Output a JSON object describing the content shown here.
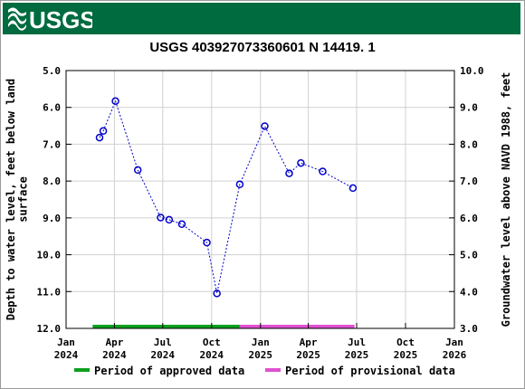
{
  "header": {
    "logo_text": "USGS",
    "banner_color": "#006b3f"
  },
  "chart_data": {
    "type": "line",
    "title": "USGS 403927073360601 N 14419. 1",
    "ylabel_left": "Depth to water level, feet below land surface",
    "ylabel_right": "Groundwater level above NAVD 1988, feet",
    "ylim_left": [
      12.0,
      5.0
    ],
    "ylim_right": [
      3.0,
      10.0
    ],
    "left_ticks": [
      "5.0",
      "6.0",
      "7.0",
      "8.0",
      "9.0",
      "10.0",
      "11.0",
      "12.0"
    ],
    "right_ticks": [
      "10.0",
      "9.0",
      "8.0",
      "7.0",
      "6.0",
      "5.0",
      "4.0",
      "3.0"
    ],
    "x_ticks": [
      {
        "line1": "Jan",
        "line2": "2024",
        "date": "2024-01-01"
      },
      {
        "line1": "Apr",
        "line2": "2024",
        "date": "2024-04-01"
      },
      {
        "line1": "Jul",
        "line2": "2024",
        "date": "2024-07-01"
      },
      {
        "line1": "Oct",
        "line2": "2024",
        "date": "2024-10-01"
      },
      {
        "line1": "Jan",
        "line2": "2025",
        "date": "2025-01-01"
      },
      {
        "line1": "Apr",
        "line2": "2025",
        "date": "2025-04-01"
      },
      {
        "line1": "Jul",
        "line2": "2025",
        "date": "2025-07-01"
      },
      {
        "line1": "Oct",
        "line2": "2025",
        "date": "2025-10-01"
      },
      {
        "line1": "Jan",
        "line2": "2026",
        "date": "2026-01-01"
      }
    ],
    "xlim": [
      "2024-01-01",
      "2026-01-01"
    ],
    "grid": true,
    "series": [
      {
        "points": [
          {
            "date": "2024-03-04",
            "y": 6.82
          },
          {
            "date": "2024-03-11",
            "y": 6.64
          },
          {
            "date": "2024-04-03",
            "y": 5.83
          },
          {
            "date": "2024-05-15",
            "y": 7.7
          },
          {
            "date": "2024-06-27",
            "y": 8.99
          },
          {
            "date": "2024-07-13",
            "y": 9.05
          },
          {
            "date": "2024-08-06",
            "y": 9.17
          },
          {
            "date": "2024-09-22",
            "y": 9.67
          },
          {
            "date": "2024-10-11",
            "y": 11.05
          },
          {
            "date": "2024-11-23",
            "y": 8.09
          },
          {
            "date": "2025-01-09",
            "y": 6.51
          },
          {
            "date": "2025-02-24",
            "y": 7.79
          },
          {
            "date": "2025-03-18",
            "y": 7.51
          },
          {
            "date": "2025-04-28",
            "y": 7.74
          },
          {
            "date": "2025-06-24",
            "y": 8.19
          }
        ],
        "color": "#0000cc"
      }
    ],
    "approval_periods": [
      {
        "name": "Period of approved data",
        "start": "2024-02-20",
        "end": "2024-11-23",
        "color": "#0ca01e"
      },
      {
        "name": "Period of provisional data",
        "start": "2024-11-23",
        "end": "2025-06-27",
        "color": "#e050d0"
      }
    ],
    "legend": {
      "placement": "bottom",
      "items": [
        {
          "label": "Period of approved data",
          "color": "#0ca01e"
        },
        {
          "label": "Period of provisional data",
          "color": "#e050d0"
        }
      ]
    }
  }
}
